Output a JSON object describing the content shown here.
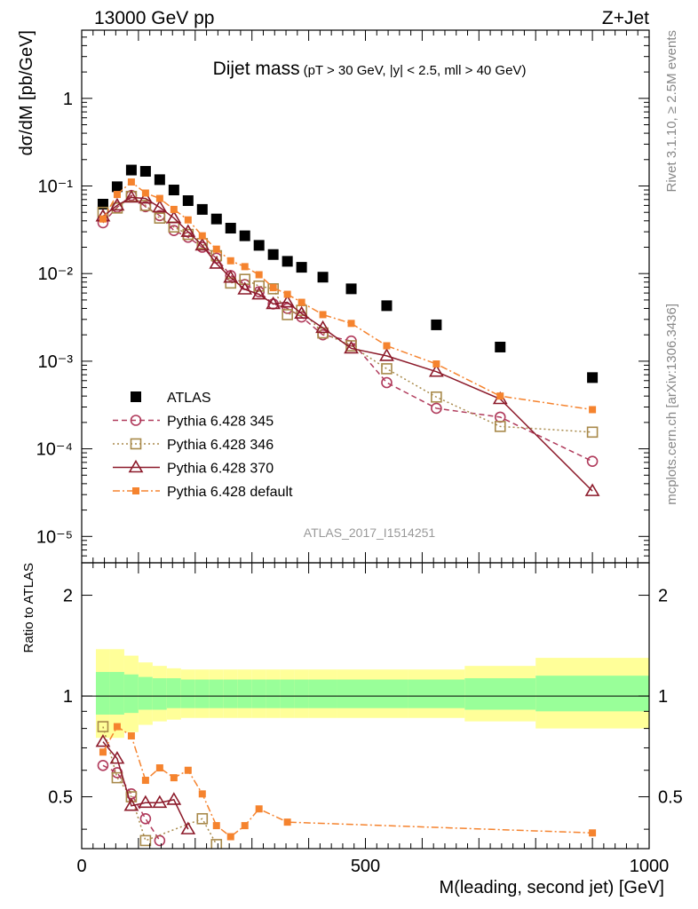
{
  "header": {
    "left": "13000 GeV pp",
    "right": "Z+Jet"
  },
  "side_labels": {
    "top": "Rivet 3.1.10, ≥ 2.5M events",
    "bottom": "mcplots.cern.ch [arXiv:1306.3436]"
  },
  "watermark": "ATLAS_2017_I1514251",
  "chart_data": [
    {
      "type": "scatter",
      "title": "Dijet mass",
      "subtitle": "(pT > 30 GeV, |y| < 2.5, mll > 40 GeV)",
      "ylabel": "dσ/dM [pb/GeV]",
      "xlim": [
        0,
        1000
      ],
      "ylim": [
        5e-06,
        6
      ],
      "yscale": "log",
      "ytick_labels": [
        "1",
        "10⁻¹",
        "10⁻²",
        "10⁻³",
        "10⁻⁴",
        "10⁻⁵"
      ],
      "legend_position": "bottom-left",
      "series": [
        {
          "name": "ATLAS",
          "color": "#000000",
          "marker": "filled-square",
          "x": [
            37.5,
            62.5,
            87.5,
            112.5,
            137.5,
            162.5,
            187.5,
            212.5,
            237.5,
            262.5,
            287.5,
            312.5,
            337.5,
            362.5,
            387.5,
            425,
            475,
            537.5,
            625,
            737.5,
            900
          ],
          "y": [
            0.062,
            0.098,
            0.152,
            0.147,
            0.118,
            0.09,
            0.068,
            0.054,
            0.042,
            0.033,
            0.027,
            0.021,
            0.0165,
            0.0138,
            0.0118,
            0.0091,
            0.0067,
            0.0043,
            0.0026,
            0.00145,
            0.00065
          ]
        },
        {
          "name": "Pythia 6.428 345",
          "color": "#b03a5b",
          "marker": "open-circle",
          "line": "dashed",
          "x": [
            37.5,
            62.5,
            87.5,
            112.5,
            137.5,
            162.5,
            187.5,
            212.5,
            237.5,
            262.5,
            287.5,
            312.5,
            337.5,
            362.5,
            387.5,
            425,
            475,
            537.5,
            625,
            737.5,
            900
          ],
          "y": [
            0.038,
            0.057,
            0.078,
            0.058,
            0.046,
            0.031,
            0.026,
            0.02,
            0.015,
            0.0095,
            0.0075,
            0.0062,
            0.0045,
            0.004,
            0.0032,
            0.002,
            0.0017,
            0.00057,
            0.00029,
            0.00023,
            7.2e-05
          ]
        },
        {
          "name": "Pythia 6.428 346",
          "color": "#a8894a",
          "marker": "open-square",
          "line": "dotted",
          "x": [
            37.5,
            62.5,
            87.5,
            112.5,
            137.5,
            162.5,
            187.5,
            212.5,
            237.5,
            262.5,
            287.5,
            312.5,
            337.5,
            362.5,
            387.5,
            425,
            475,
            537.5,
            625,
            737.5,
            900
          ],
          "y": [
            0.05,
            0.056,
            0.076,
            0.06,
            0.043,
            0.034,
            0.028,
            0.022,
            0.016,
            0.0078,
            0.0086,
            0.0072,
            0.0067,
            0.0034,
            0.0038,
            0.0021,
            0.0015,
            0.00082,
            0.00039,
            0.00018,
            0.000155
          ]
        },
        {
          "name": "Pythia 6.428 370",
          "color": "#8c1a2a",
          "marker": "open-triangle",
          "line": "solid",
          "x": [
            37.5,
            62.5,
            87.5,
            112.5,
            137.5,
            162.5,
            187.5,
            212.5,
            237.5,
            262.5,
            287.5,
            312.5,
            337.5,
            362.5,
            387.5,
            425,
            475,
            537.5,
            625,
            737.5,
            900
          ],
          "y": [
            0.045,
            0.06,
            0.074,
            0.072,
            0.057,
            0.043,
            0.03,
            0.021,
            0.013,
            0.009,
            0.0066,
            0.0058,
            0.0045,
            0.0047,
            0.0035,
            0.0024,
            0.0014,
            0.00115,
            0.00076,
            0.00037,
            3.3e-05
          ]
        },
        {
          "name": "Pythia 6.428 default",
          "color": "#f5832e",
          "marker": "filled-square-small",
          "line": "dash-dot",
          "x": [
            37.5,
            62.5,
            87.5,
            112.5,
            137.5,
            162.5,
            187.5,
            212.5,
            237.5,
            262.5,
            287.5,
            312.5,
            337.5,
            362.5,
            387.5,
            425,
            475,
            537.5,
            625,
            737.5,
            900
          ],
          "y": [
            0.042,
            0.08,
            0.111,
            0.083,
            0.072,
            0.054,
            0.041,
            0.027,
            0.019,
            0.014,
            0.012,
            0.0097,
            0.0069,
            0.0058,
            0.0047,
            0.0034,
            0.0027,
            0.0015,
            0.00093,
            0.0004,
            0.00028
          ]
        }
      ]
    },
    {
      "type": "scatter",
      "ylabel": "Ratio to ATLAS",
      "xlabel": "M(leading, second jet) [GeV]",
      "xlim": [
        0,
        1000
      ],
      "ylim": [
        0.35,
        2.5
      ],
      "yscale": "log",
      "xtick_labels": [
        "0",
        "500",
        "1000"
      ],
      "ytick_labels": [
        "0.5",
        "1",
        "2"
      ],
      "band_edges": [
        25,
        50,
        75,
        100,
        125,
        150,
        175,
        200,
        225,
        250,
        275,
        300,
        325,
        350,
        375,
        400,
        450,
        500,
        575,
        675,
        800,
        1000
      ],
      "band_inner": [
        [
          0.88,
          1.18
        ],
        [
          0.88,
          1.18
        ],
        [
          0.89,
          1.16
        ],
        [
          0.91,
          1.14
        ],
        [
          0.91,
          1.13
        ],
        [
          0.92,
          1.13
        ],
        [
          0.92,
          1.12
        ],
        [
          0.92,
          1.12
        ],
        [
          0.92,
          1.12
        ],
        [
          0.92,
          1.12
        ],
        [
          0.92,
          1.12
        ],
        [
          0.92,
          1.12
        ],
        [
          0.92,
          1.12
        ],
        [
          0.92,
          1.12
        ],
        [
          0.92,
          1.12
        ],
        [
          0.92,
          1.12
        ],
        [
          0.92,
          1.12
        ],
        [
          0.92,
          1.12
        ],
        [
          0.92,
          1.12
        ],
        [
          0.91,
          1.13
        ],
        [
          0.9,
          1.15
        ]
      ],
      "band_outer": [
        [
          0.75,
          1.38
        ],
        [
          0.75,
          1.38
        ],
        [
          0.78,
          1.32
        ],
        [
          0.82,
          1.26
        ],
        [
          0.84,
          1.23
        ],
        [
          0.85,
          1.21
        ],
        [
          0.86,
          1.2
        ],
        [
          0.86,
          1.2
        ],
        [
          0.86,
          1.2
        ],
        [
          0.86,
          1.2
        ],
        [
          0.86,
          1.2
        ],
        [
          0.86,
          1.2
        ],
        [
          0.86,
          1.2
        ],
        [
          0.86,
          1.2
        ],
        [
          0.86,
          1.2
        ],
        [
          0.86,
          1.2
        ],
        [
          0.86,
          1.2
        ],
        [
          0.86,
          1.2
        ],
        [
          0.86,
          1.2
        ],
        [
          0.84,
          1.23
        ],
        [
          0.8,
          1.3
        ]
      ],
      "band_colors": {
        "inner": "#99ff99",
        "outer": "#ffff99"
      },
      "series": [
        {
          "name": "Pythia 6.428 345",
          "color": "#b03a5b",
          "marker": "open-circle",
          "line": "dashed",
          "x": [
            37.5,
            62.5,
            87.5,
            112.5,
            137.5
          ],
          "y": [
            0.62,
            0.59,
            0.51,
            0.43,
            0.37
          ]
        },
        {
          "name": "Pythia 6.428 346",
          "color": "#a8894a",
          "marker": "open-square",
          "line": "dotted",
          "x": [
            37.5,
            62.5,
            87.5,
            112.5,
            212.5,
            237.5
          ],
          "y": [
            0.81,
            0.57,
            0.5,
            0.37,
            0.43,
            0.36
          ]
        },
        {
          "name": "Pythia 6.428 370",
          "color": "#8c1a2a",
          "marker": "open-triangle",
          "line": "solid",
          "x": [
            37.5,
            62.5,
            87.5,
            112.5,
            137.5,
            162.5,
            187.5
          ],
          "y": [
            0.73,
            0.65,
            0.47,
            0.48,
            0.48,
            0.49,
            0.4
          ]
        },
        {
          "name": "Pythia 6.428 default",
          "color": "#f5832e",
          "marker": "filled-square-small",
          "line": "dash-dot",
          "x": [
            37.5,
            62.5,
            87.5,
            112.5,
            137.5,
            162.5,
            187.5,
            212.5,
            237.5,
            262.5,
            287.5,
            312.5,
            362.5,
            900
          ],
          "y": [
            0.68,
            0.81,
            0.76,
            0.56,
            0.61,
            0.57,
            0.6,
            0.51,
            0.41,
            0.38,
            0.41,
            0.46,
            0.42,
            0.39
          ]
        }
      ]
    }
  ]
}
